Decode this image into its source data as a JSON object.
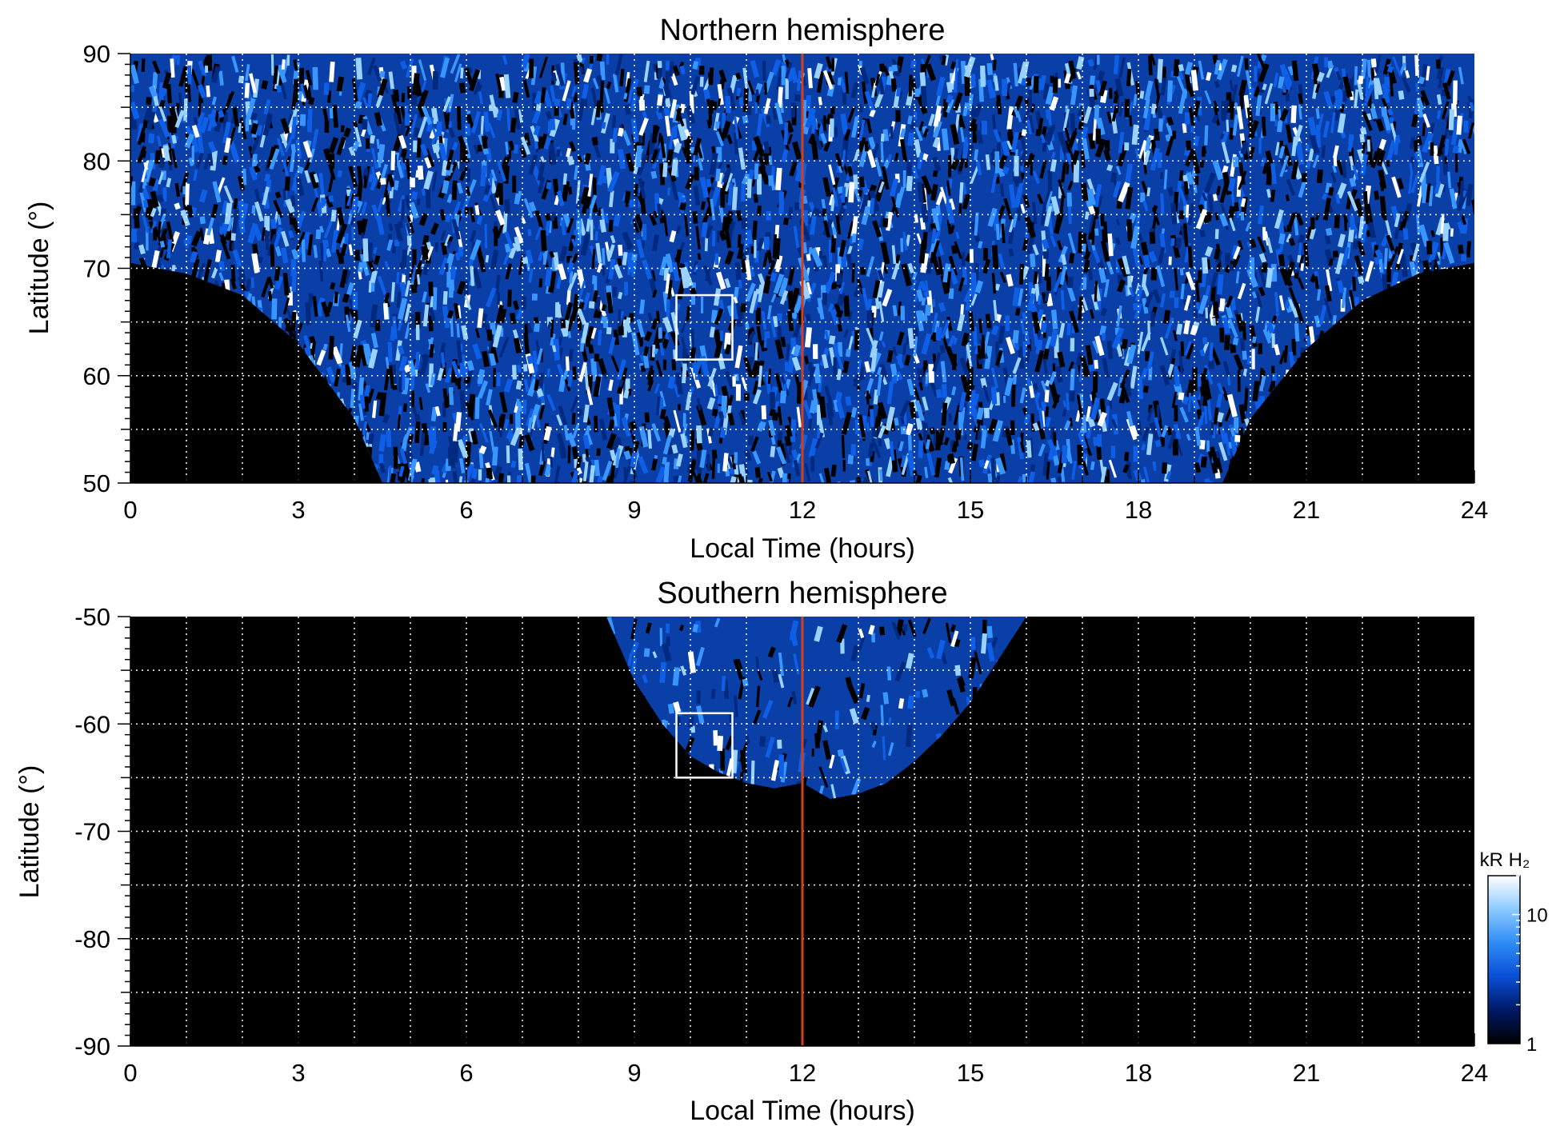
{
  "chart_data": [
    {
      "type": "heatmap",
      "title": "Northern hemisphere",
      "xlabel": "Local Time (hours)",
      "ylabel": "Latitude (°)",
      "xlim": [
        0,
        24
      ],
      "ylim": [
        50,
        90
      ],
      "x_ticks": [
        "0",
        "3",
        "6",
        "9",
        "12",
        "15",
        "18",
        "21",
        "24"
      ],
      "x_tick_values": [
        0,
        3,
        6,
        9,
        12,
        15,
        18,
        21,
        24
      ],
      "y_ticks": [
        "50",
        "60",
        "70",
        "80",
        "90"
      ],
      "y_tick_values": [
        50,
        60,
        70,
        80,
        90
      ],
      "grid": true,
      "grid_x_step_hours": 1,
      "grid_y_step_deg": 5,
      "reference_line": {
        "x": 12,
        "color": "#d2401a"
      },
      "highlight_box": {
        "x": [
          9.75,
          10.75
        ],
        "y": [
          61.5,
          67.5
        ]
      },
      "coverage_edge": {
        "lt": [
          0,
          1,
          2,
          3,
          4,
          4.5,
          5,
          6,
          7,
          8,
          9,
          10,
          11,
          12,
          13,
          14,
          15,
          16,
          17,
          18,
          19,
          19.5,
          20,
          21,
          22,
          23,
          24
        ],
        "lat": [
          70.5,
          69.5,
          67.5,
          63,
          56,
          50,
          50,
          50,
          50,
          50,
          50,
          50,
          50,
          50,
          50,
          50,
          50,
          50,
          50,
          50,
          50,
          50,
          56,
          62.5,
          67,
          69.5,
          70.5
        ]
      }
    },
    {
      "type": "heatmap",
      "title": "Southern hemisphere",
      "xlabel": "Local Time (hours)",
      "ylabel": "Latitude (°)",
      "xlim": [
        0,
        24
      ],
      "ylim": [
        -90,
        -50
      ],
      "x_ticks": [
        "0",
        "3",
        "6",
        "9",
        "12",
        "15",
        "18",
        "21",
        "24"
      ],
      "x_tick_values": [
        0,
        3,
        6,
        9,
        12,
        15,
        18,
        21,
        24
      ],
      "y_ticks": [
        "-50",
        "-60",
        "-70",
        "-80",
        "-90"
      ],
      "y_tick_values": [
        -50,
        -60,
        -70,
        -80,
        -90
      ],
      "grid": true,
      "grid_x_step_hours": 1,
      "grid_y_step_deg": 5,
      "reference_line": {
        "x": 12,
        "color": "#d2401a"
      },
      "highlight_box": {
        "x": [
          9.75,
          10.75
        ],
        "y": [
          -65,
          -59
        ]
      },
      "coverage_edge": {
        "lt": [
          8.5,
          9,
          9.5,
          10,
          10.5,
          11,
          11.5,
          12,
          12.5,
          13,
          13.5,
          14,
          14.5,
          15,
          15.5,
          16
        ],
        "lat": [
          -50,
          -56,
          -60,
          -63,
          -64.5,
          -65.5,
          -66,
          -65.5,
          -67,
          -66.5,
          -65.5,
          -63.5,
          -61,
          -58,
          -54,
          -50
        ]
      },
      "colorbar": {
        "label": "kR H₂",
        "scale": "log",
        "range": [
          1,
          20
        ],
        "tick_labels": [
          "1",
          "10"
        ],
        "tick_values": [
          1,
          10
        ],
        "colors": [
          "#000000",
          "#001a66",
          "#0a4fd6",
          "#2f8cf5",
          "#8ccaff",
          "#ffffff"
        ],
        "placement": "right of southern panel"
      }
    }
  ]
}
